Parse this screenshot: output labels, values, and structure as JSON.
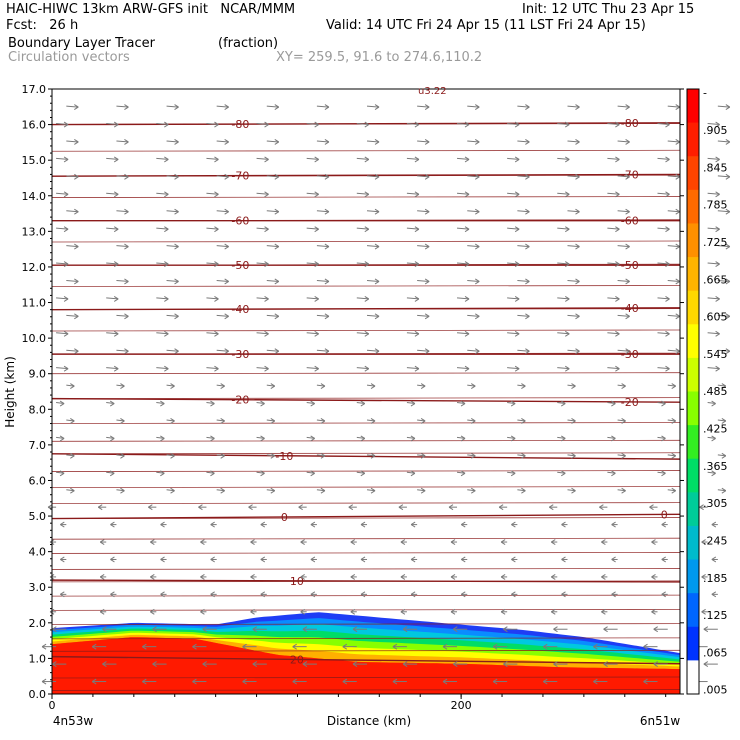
{
  "header": {
    "model_line": "HAIC-HIWC 13km ARW-GFS init   NCAR/MMM",
    "init_line": "Init: 12 UTC Thu 23 Apr 15",
    "fcst_line": "Fcst:   26 h",
    "valid_line": "Valid: 14 UTC Fri 24 Apr 15 (11 LST Fri 24 Apr 15)",
    "field_name": "Boundary Layer Tracer",
    "field_unit": "(fraction)",
    "vector_label": "Circulation vectors",
    "xy_label": "XY= 259.5, 91.6 to 274.6,110.2"
  },
  "chart_data": {
    "type": "heatmap",
    "title": "Boundary Layer Tracer",
    "ylabel": "Height (km)",
    "xlabel": "Distance (km)",
    "ylim": [
      0,
      17
    ],
    "y_ticks": [
      "0.0",
      "1.0",
      "2.0",
      "3.0",
      "4.0",
      "5.0",
      "6.0",
      "7.0",
      "8.0",
      "9.0",
      "10.0",
      "11.0",
      "12.0",
      "13.0",
      "14.0",
      "15.0",
      "16.0",
      "17.0"
    ],
    "xlim": [
      0,
      307
    ],
    "x_ticks": [
      {
        "value": 0,
        "label": "0"
      },
      {
        "value": 200,
        "label": "200"
      }
    ],
    "x_left_label": "4n53w",
    "x_right_label": "6n51w",
    "top_annotation": "u3.22",
    "temperature_contours": [
      {
        "label": "-80",
        "y_left": 16.0,
        "y_right": 16.05
      },
      {
        "label": "-70",
        "y_left": 14.55,
        "y_right": 14.6
      },
      {
        "label": "-60",
        "y_left": 13.3,
        "y_right": 13.3
      },
      {
        "label": "-50",
        "y_left": 12.05,
        "y_right": 12.05
      },
      {
        "label": "-40",
        "y_left": 10.8,
        "y_right": 10.85
      },
      {
        "label": "-30",
        "y_left": 9.55,
        "y_right": 9.55
      },
      {
        "label": "-20",
        "y_left": 8.3,
        "y_right": 8.2
      },
      {
        "label": "-10",
        "y_left": 6.75,
        "y_right": 6.6
      },
      {
        "label": "0",
        "y_left": 4.93,
        "y_right": 5.05
      },
      {
        "label": "10",
        "y_left": 3.2,
        "y_right": 3.15
      },
      {
        "label": "20",
        "y_left": 1.05,
        "y_right": 0.85
      }
    ],
    "pressure_lines": [
      0.1,
      0.45,
      1.2,
      1.55,
      1.95,
      2.35,
      2.75,
      3.15,
      3.5,
      3.95,
      4.35,
      4.93,
      5.35,
      5.8,
      6.25,
      6.75,
      7.1,
      7.6,
      8.3,
      9.0,
      9.55,
      10.2,
      10.8,
      11.45,
      12.05,
      12.7,
      13.3,
      13.95,
      14.55,
      15.25,
      16.0
    ],
    "tracer_top_km": [
      {
        "x": 0,
        "top": 1.85
      },
      {
        "x": 40,
        "top": 2.0
      },
      {
        "x": 80,
        "top": 1.95
      },
      {
        "x": 100,
        "top": 2.15
      },
      {
        "x": 130,
        "top": 2.3
      },
      {
        "x": 160,
        "top": 2.15
      },
      {
        "x": 200,
        "top": 1.95
      },
      {
        "x": 230,
        "top": 1.8
      },
      {
        "x": 260,
        "top": 1.6
      },
      {
        "x": 307,
        "top": 1.15
      }
    ],
    "tracer_core_top_km": [
      {
        "x": 0,
        "top": 1.4
      },
      {
        "x": 40,
        "top": 1.6
      },
      {
        "x": 70,
        "top": 1.55
      },
      {
        "x": 110,
        "top": 1.1
      },
      {
        "x": 150,
        "top": 0.9
      },
      {
        "x": 200,
        "top": 0.85
      },
      {
        "x": 250,
        "top": 0.75
      },
      {
        "x": 307,
        "top": 0.7
      }
    ],
    "colorbar_labels": [
      "-",
      ".905",
      ".845",
      ".785",
      ".725",
      ".665",
      ".605",
      ".545",
      ".485",
      ".425",
      ".365",
      ".305",
      ".245",
      ".185",
      ".125",
      ".065",
      ".005"
    ],
    "colorbar_colors": [
      "#ff0000",
      "#ff1e00",
      "#ff4400",
      "#ff6a00",
      "#ff9000",
      "#ffb400",
      "#ffd800",
      "#ffff00",
      "#ccff00",
      "#88ff00",
      "#33ee22",
      "#00dd66",
      "#00cc99",
      "#00bbcc",
      "#0099ee",
      "#0066ff",
      "#0033ff",
      "#ffffff"
    ]
  },
  "colors": {
    "contour": "#8b1a1a",
    "vector": "#7a7a7a",
    "axis": "#000000"
  }
}
